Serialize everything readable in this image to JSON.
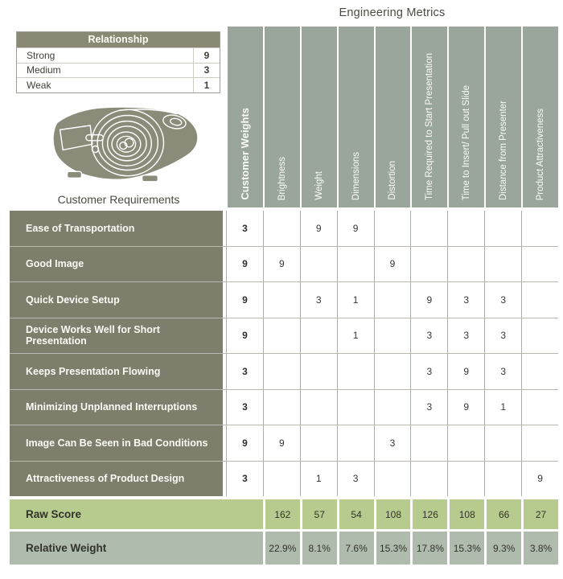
{
  "title": "Engineering Metrics",
  "legend": {
    "title": "Relationship",
    "items": [
      {
        "label": "Strong",
        "value": "9"
      },
      {
        "label": "Medium",
        "value": "3"
      },
      {
        "label": "Weak",
        "value": "1"
      }
    ]
  },
  "customer_requirements_label": "Customer Requirements",
  "matrix": {
    "columns": [
      "Customer Weights",
      "Brightness",
      "Weight",
      "Dimensions",
      "Distortion",
      "Time Required to Start Presentation",
      "Time to Insert/ Pull out Slide",
      "Distance from Presenter",
      "Product Attractiveness"
    ],
    "rows": [
      {
        "label": "Ease of Transportation",
        "weight": "3",
        "values": [
          "",
          "9",
          "9",
          "",
          "",
          "",
          "",
          ""
        ]
      },
      {
        "label": "Good Image",
        "weight": "9",
        "values": [
          "9",
          "",
          "",
          "9",
          "",
          "",
          "",
          ""
        ]
      },
      {
        "label": "Quick Device Setup",
        "weight": "9",
        "values": [
          "",
          "3",
          "1",
          "",
          "9",
          "3",
          "3",
          ""
        ]
      },
      {
        "label": "Device Works Well for Short Presentation",
        "weight": "9",
        "values": [
          "",
          "",
          "1",
          "",
          "3",
          "3",
          "3",
          ""
        ]
      },
      {
        "label": "Keeps Presentation Flowing",
        "weight": "3",
        "values": [
          "",
          "",
          "",
          "",
          "3",
          "9",
          "3",
          ""
        ]
      },
      {
        "label": "Minimizing Unplanned Interruptions",
        "weight": "3",
        "values": [
          "",
          "",
          "",
          "",
          "3",
          "9",
          "1",
          ""
        ]
      },
      {
        "label": "Image Can Be Seen in Bad Conditions",
        "weight": "9",
        "values": [
          "9",
          "",
          "",
          "3",
          "",
          "",
          "",
          ""
        ]
      },
      {
        "label": "Attractiveness of Product Design",
        "weight": "3",
        "values": [
          "",
          "1",
          "3",
          "",
          "",
          "",
          "",
          "9"
        ]
      }
    ]
  },
  "footer": {
    "raw_score": {
      "label": "Raw Score",
      "values": [
        "162",
        "57",
        "54",
        "108",
        "126",
        "108",
        "66",
        "27"
      ]
    },
    "relative_weight": {
      "label": "Relative Weight",
      "values": [
        "22.9%",
        "8.1%",
        "7.6%",
        "15.3%",
        "17.8%",
        "15.3%",
        "9.3%",
        "3.8%"
      ]
    }
  },
  "colors": {
    "header_sage": "#9aa59b",
    "row_label_olive": "#7f7e6c",
    "legend_header_olive": "#8a8974",
    "raw_score_green": "#b7cb8e",
    "relative_weight_gray": "#aebbad",
    "grid_line": "#a6adab",
    "text_dark": "#3b3b33"
  }
}
